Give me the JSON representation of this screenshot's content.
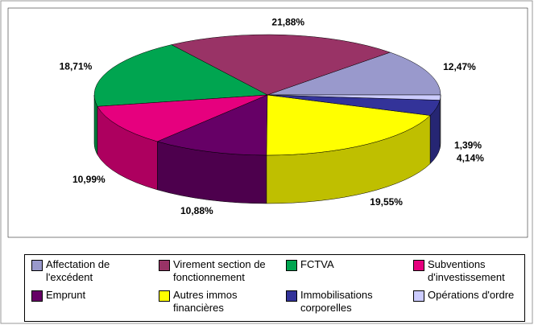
{
  "chart_data": {
    "type": "pie",
    "categories": [
      "Affectation de l'excédent",
      "Virement section de fonctionnement",
      "FCTVA",
      "Subventions d'investissement",
      "Emprunt",
      "Autres immos financières",
      "Immobilisations corporelles",
      "Opérations d'ordre"
    ],
    "values": [
      12.47,
      21.88,
      18.71,
      10.99,
      10.88,
      19.55,
      4.14,
      1.39
    ],
    "value_labels": [
      "12,47%",
      "21,88%",
      "18,71%",
      "10,99%",
      "10,88%",
      "19,55%",
      "4,14%",
      "1,39%"
    ],
    "colors": [
      "#9999cc",
      "#993366",
      "#00a550",
      "#e6007e",
      "#660066",
      "#ffff00",
      "#333399",
      "#ccccff"
    ]
  }
}
